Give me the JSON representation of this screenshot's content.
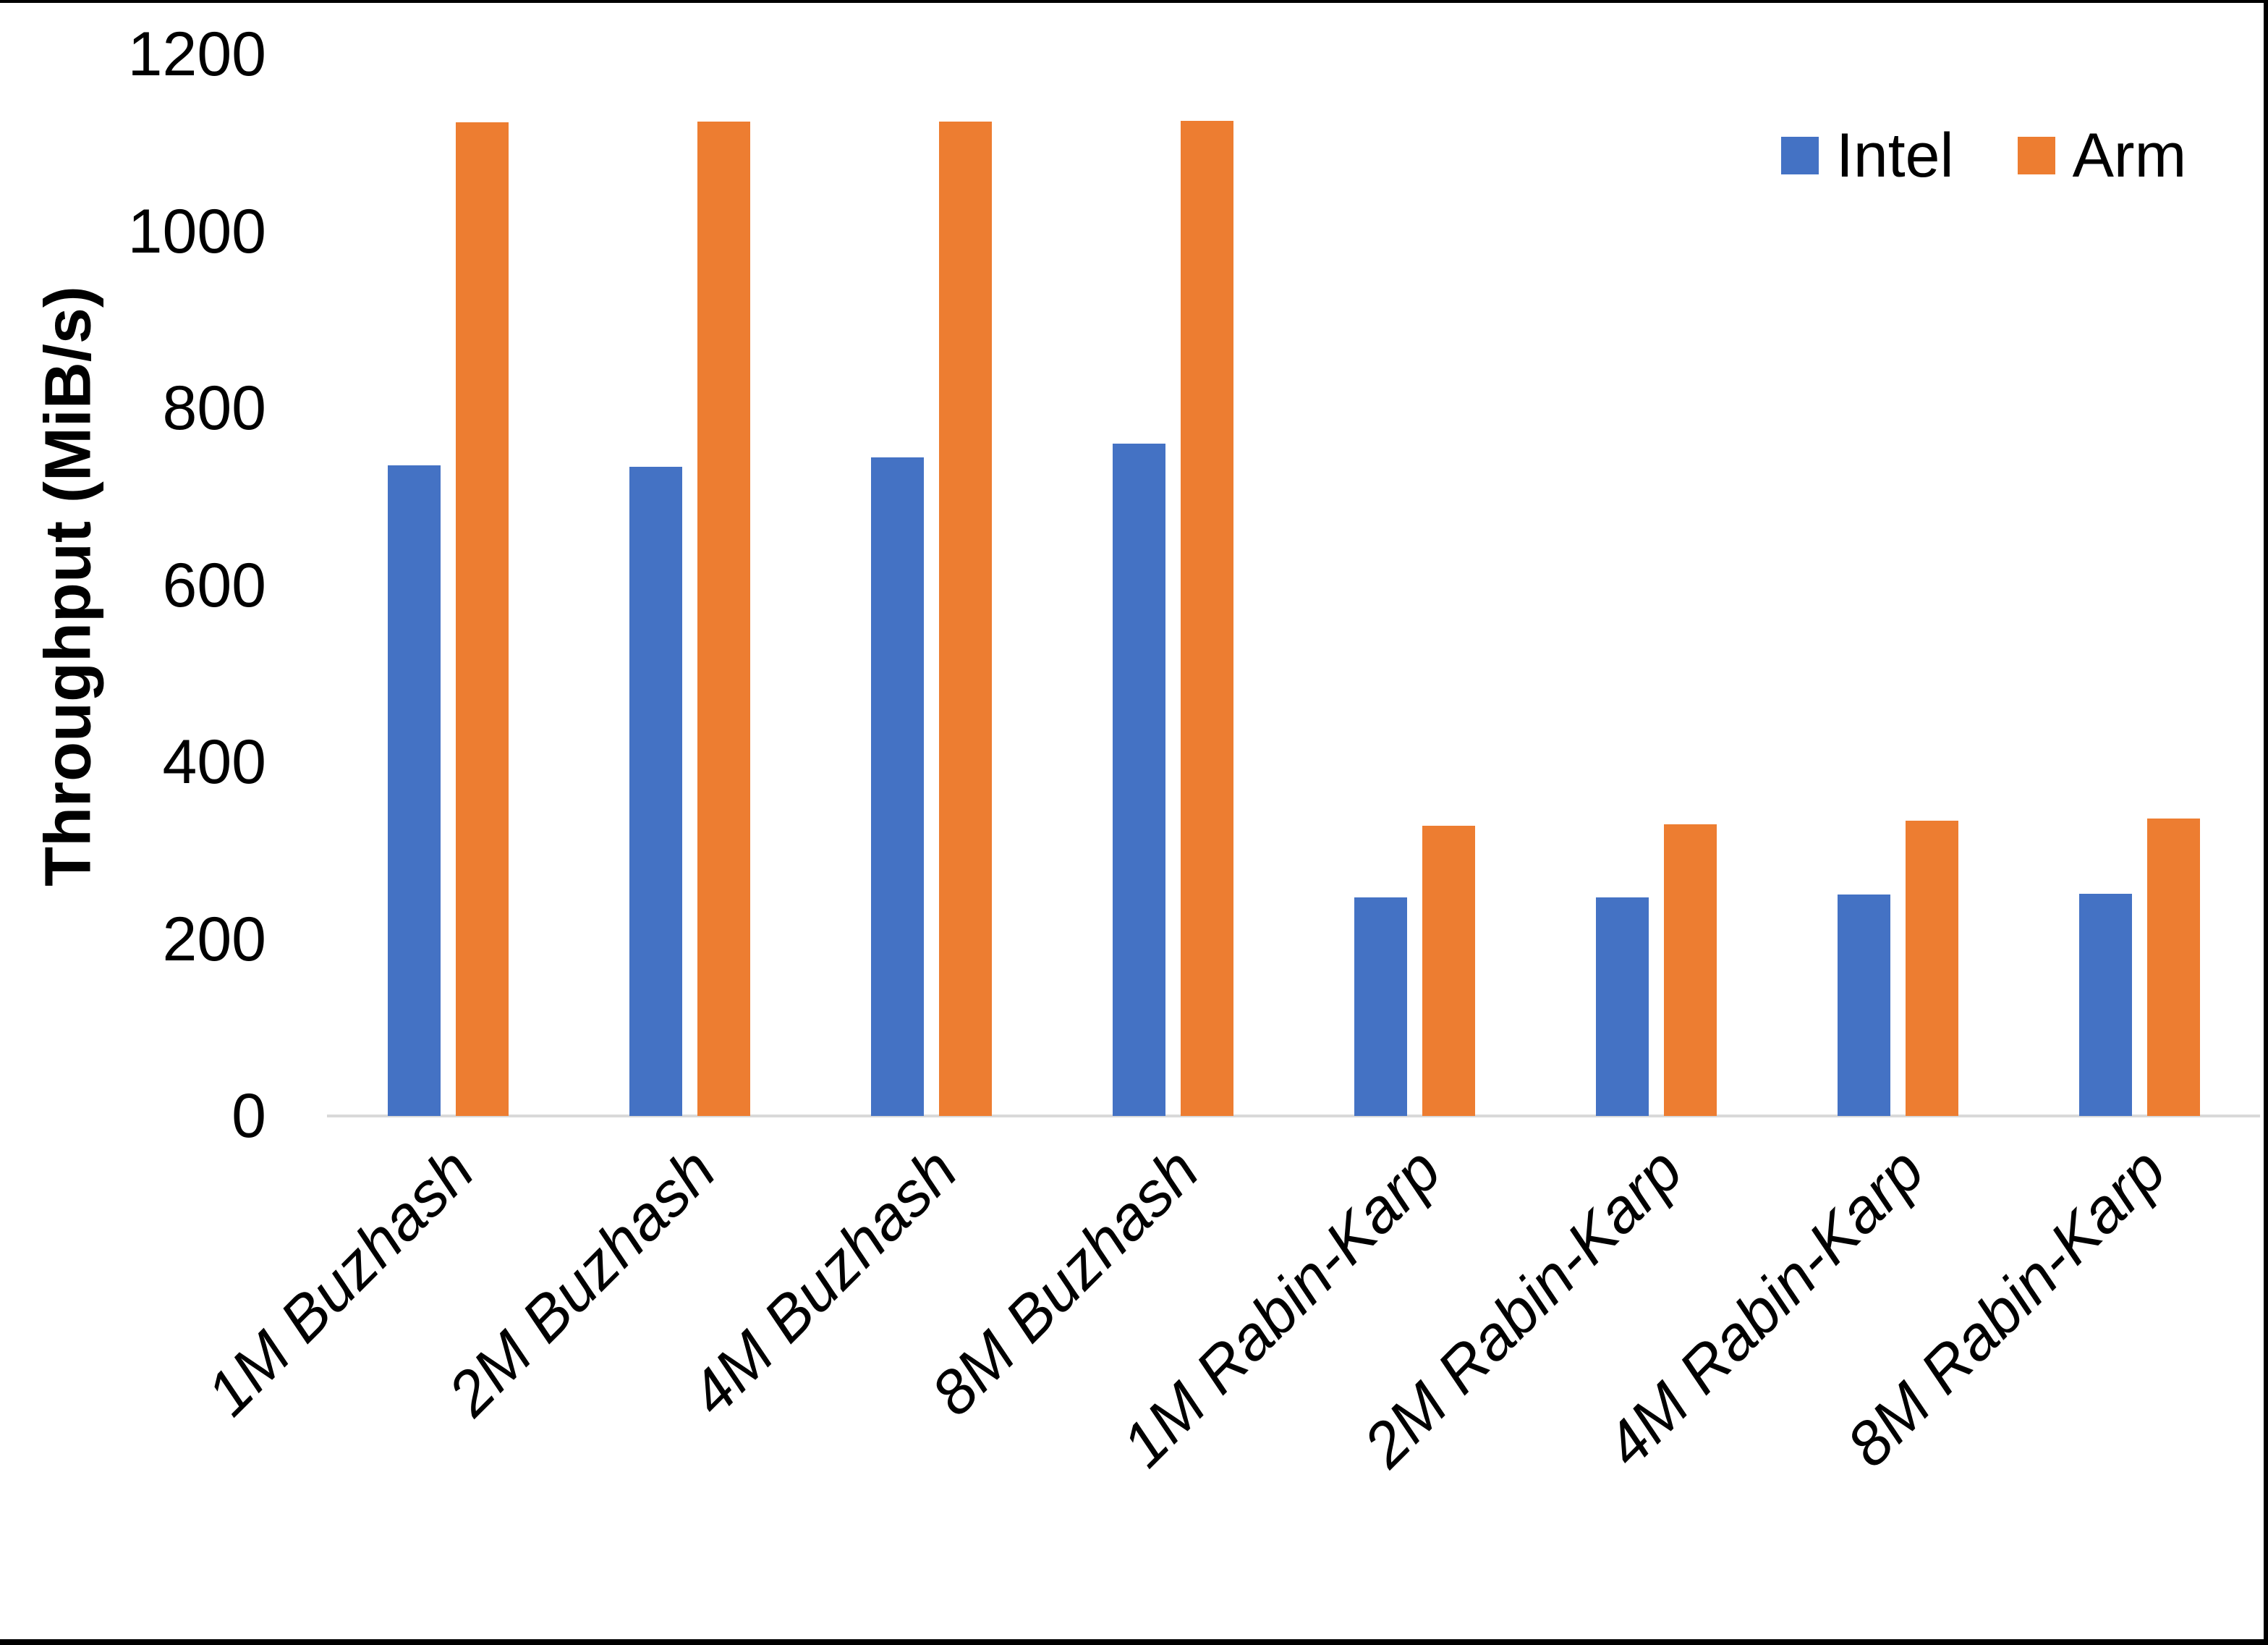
{
  "chart_data": {
    "type": "bar",
    "title": "",
    "xlabel": "",
    "ylabel": "Throughput (MiB/s)",
    "ylim": [
      0,
      1200
    ],
    "yticks": [
      0,
      200,
      400,
      600,
      800,
      1000,
      1200
    ],
    "grid": false,
    "legend_position": "top-right",
    "axis_line_color": "#D9D9D9",
    "categories": [
      "1M Buzhash",
      "2M Buzhash",
      "4M Buzhash",
      "8M Buzhash",
      "1M Rabin-Karp",
      "2M Rabin-Karp",
      "4M Rabin-Karp",
      "8M Rabin-Karp"
    ],
    "series": [
      {
        "name": "Intel",
        "color": "#4472C4",
        "values": [
          735,
          734,
          744,
          760,
          247,
          247,
          250,
          251
        ]
      },
      {
        "name": "Arm",
        "color": "#ED7D31",
        "values": [
          1123,
          1124,
          1124,
          1125,
          328,
          330,
          334,
          336
        ]
      }
    ]
  }
}
